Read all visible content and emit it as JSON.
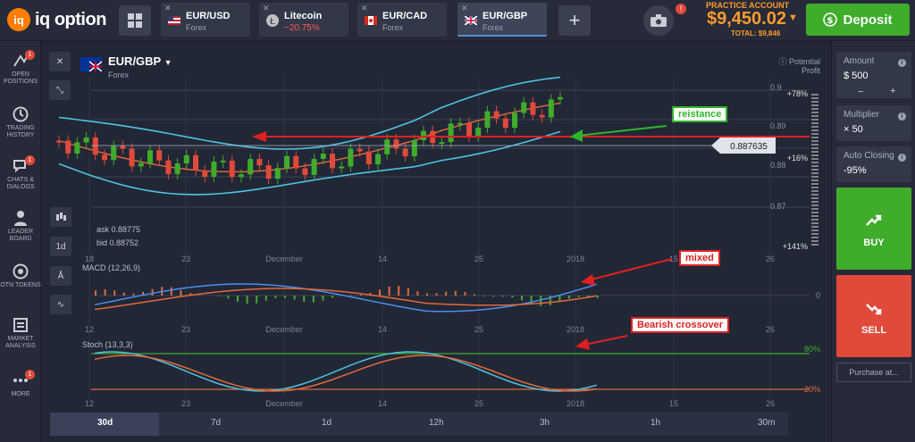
{
  "header": {
    "logo": "iq option",
    "tabs": [
      {
        "name": "EUR/USD",
        "sub": "Forex",
        "flag": "us"
      },
      {
        "name": "Litecoin",
        "sub": "−20.75%",
        "flag": "ltc"
      },
      {
        "name": "EUR/CAD",
        "sub": "Forex",
        "flag": "ca"
      },
      {
        "name": "EUR/GBP",
        "sub": "Forex",
        "flag": "gb"
      }
    ],
    "camera_badge": "!",
    "account_label": "PRACTICE ACCOUNT",
    "balance": "$9,450.02",
    "total": "TOTAL: $9,846",
    "deposit_label": "Deposit"
  },
  "sidebar": {
    "items": [
      {
        "label": "OPEN POSITIONS",
        "badge": "1",
        "icon": "positions-icon"
      },
      {
        "label": "TRADING HISTORY",
        "badge": "",
        "icon": "history-icon"
      },
      {
        "label": "CHATS & DIALOGS",
        "badge": "1",
        "icon": "chat-icon"
      },
      {
        "label": "LEADER BOARD",
        "badge": "",
        "icon": "leaderboard-icon"
      },
      {
        "label": "OTN TOKENS",
        "badge": "",
        "icon": "otn-icon"
      },
      {
        "label": "MARKET ANALYSIS",
        "badge": "",
        "icon": "analysis-icon"
      },
      {
        "label": "MORE",
        "badge": "1",
        "icon": "more-icon"
      }
    ]
  },
  "chart": {
    "pair": "EUR/GBP",
    "market": "Forex",
    "ask": "ask 0.88775",
    "bid": "bid 0.88752",
    "current_price": "0.887635",
    "potential_profit_label": "Potential Profit",
    "profit_levels": [
      "+78%",
      "+16%",
      "+141%"
    ],
    "price_ticks": [
      "0.9",
      "0.89",
      "0.88",
      "0.87"
    ],
    "x_ticks_main": [
      "18",
      "23",
      "December",
      "14",
      "25",
      "2018",
      "15",
      "26"
    ],
    "x_ticks_bottom": [
      "12",
      "23",
      "December",
      "14",
      "25",
      "2018",
      "15",
      "26"
    ],
    "macd_label": "MACD (12,26,9)",
    "macd_zero": "0",
    "stoch_label": "Stoch (13,3,3)",
    "stoch_levels": [
      "80%",
      "20%"
    ],
    "annotations": {
      "resistance": "reistance",
      "mixed": "mixed",
      "bearish": "Bearish crossover"
    },
    "timeframe_buttons": [
      "30d",
      "7d",
      "1d",
      "12h",
      "3h",
      "1h",
      "30m"
    ],
    "selected_timeframe": "30d",
    "left_tools": [
      "1d"
    ]
  },
  "trade_panel": {
    "amount_label": "Amount",
    "amount_value": "$ 500",
    "multiplier_label": "Multiplier",
    "multiplier_value": "× 50",
    "autoclose_label": "Auto Closing",
    "autoclose_value": "-95%",
    "buy_label": "BUY",
    "sell_label": "SELL",
    "purchase_label": "Purchase at..."
  },
  "colors": {
    "buy": "#3fac2c",
    "sell": "#e04a3a",
    "accent": "#ff9a2e",
    "bollinger": "#4ec3e0",
    "annotation_arrow_green": "#2fb52a",
    "annotation_arrow_red": "#e02020"
  }
}
